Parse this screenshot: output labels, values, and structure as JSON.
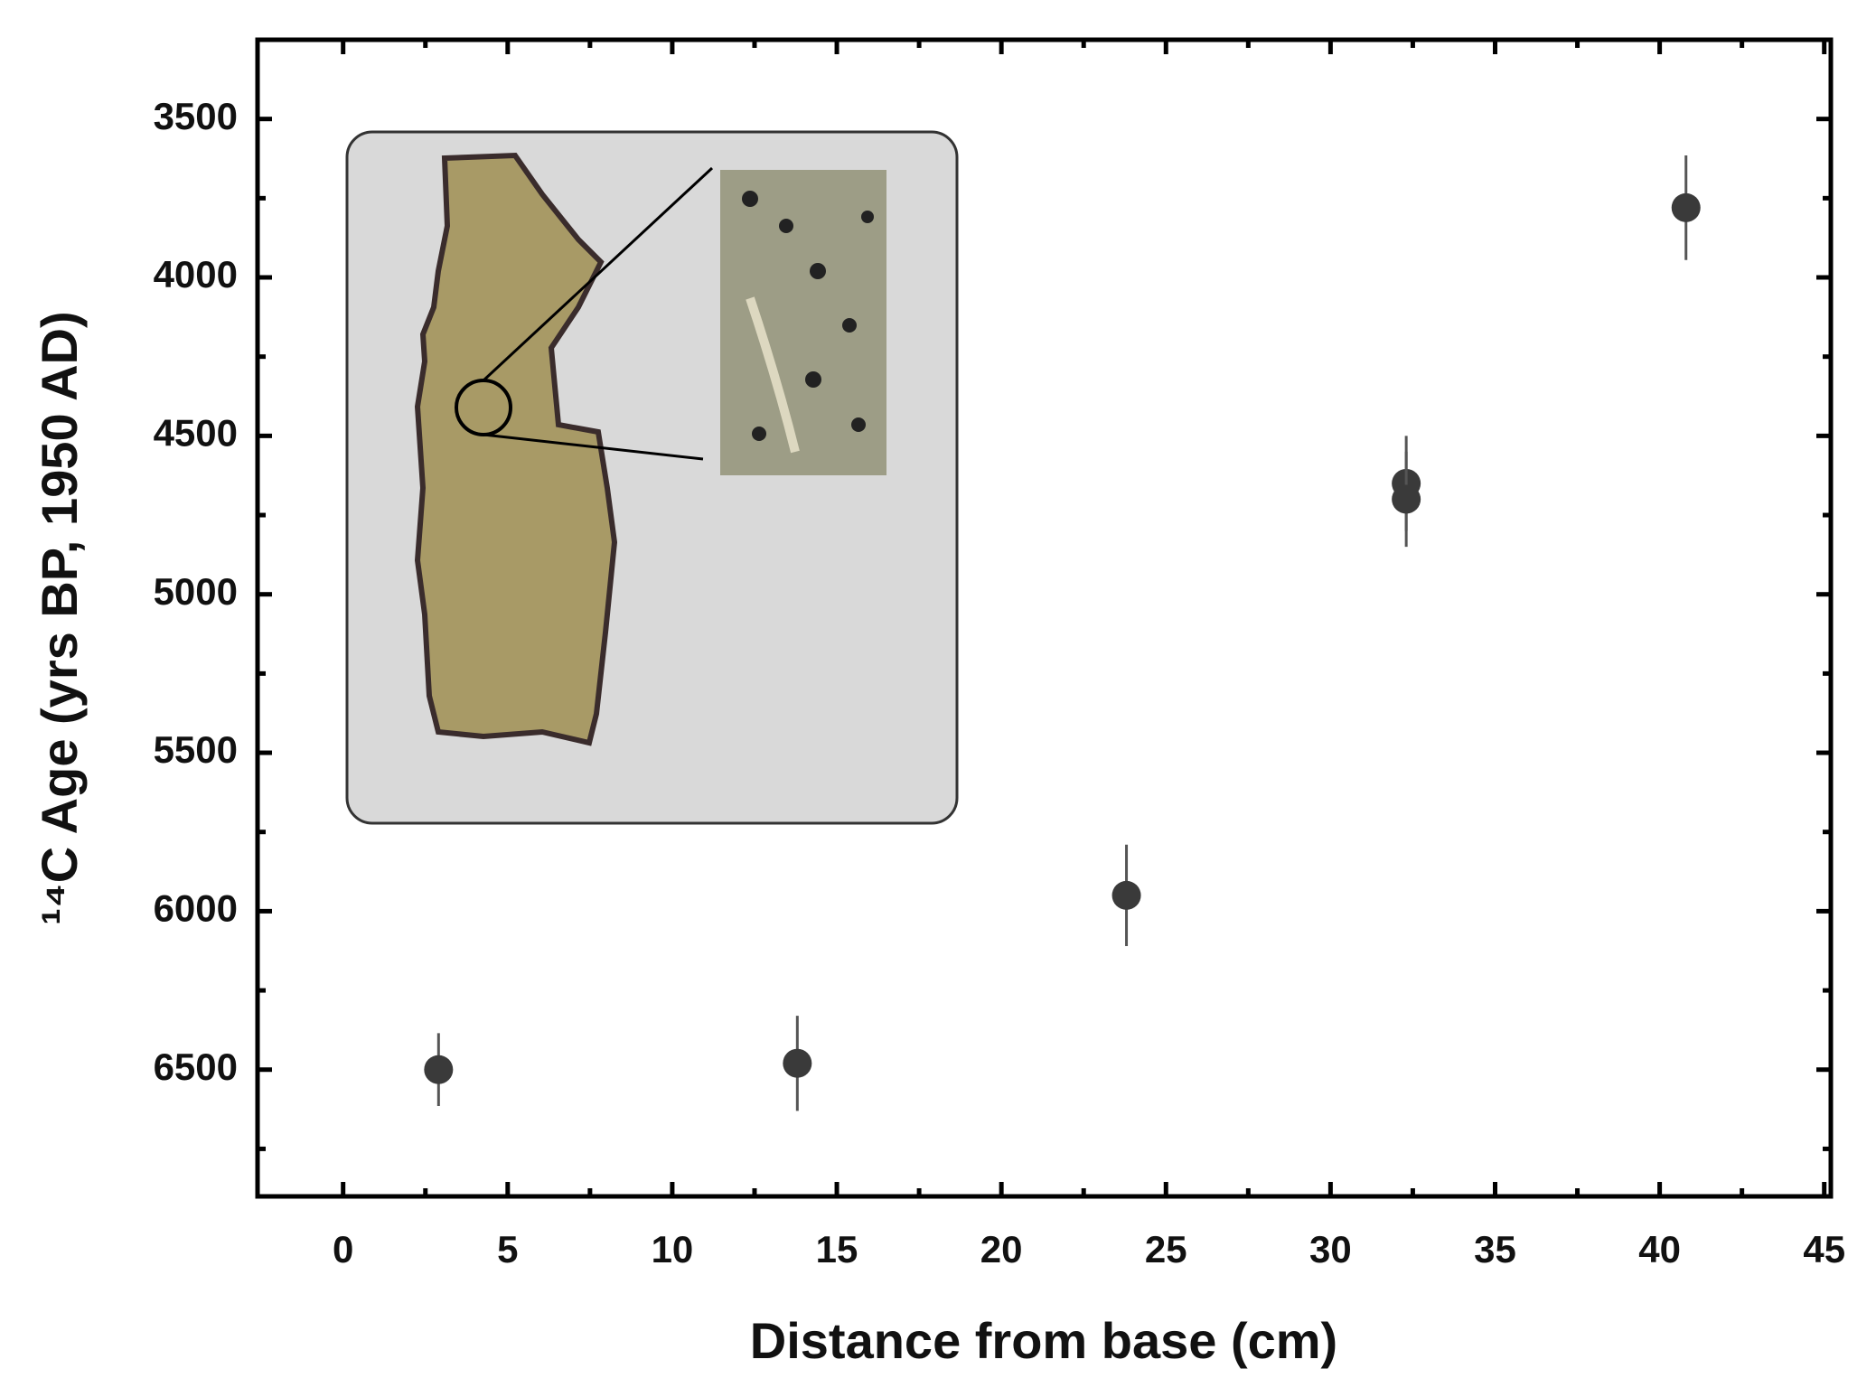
{
  "chart_data": {
    "type": "scatter",
    "x_label": "Distance from base (cm)",
    "y_label": "¹⁴C Age (yrs BP, 1950 AD)",
    "x": [
      2.9,
      13.8,
      23.8,
      32.3,
      32.3,
      40.8
    ],
    "values": [
      6500,
      6480,
      5950,
      4650,
      4700,
      3780
    ],
    "errors": [
      115,
      150,
      160,
      150,
      150,
      165
    ],
    "color": "#3a3a3a",
    "xlim": [
      -2.6,
      45.2
    ],
    "xticks": [
      0,
      5,
      10,
      15,
      20,
      25,
      30,
      35,
      40,
      45
    ],
    "ylim": [
      3250,
      6900
    ],
    "yticks": [
      3500,
      4000,
      4500,
      5000,
      5500,
      6000,
      6500
    ],
    "y_inverted": true,
    "grid": false
  }
}
